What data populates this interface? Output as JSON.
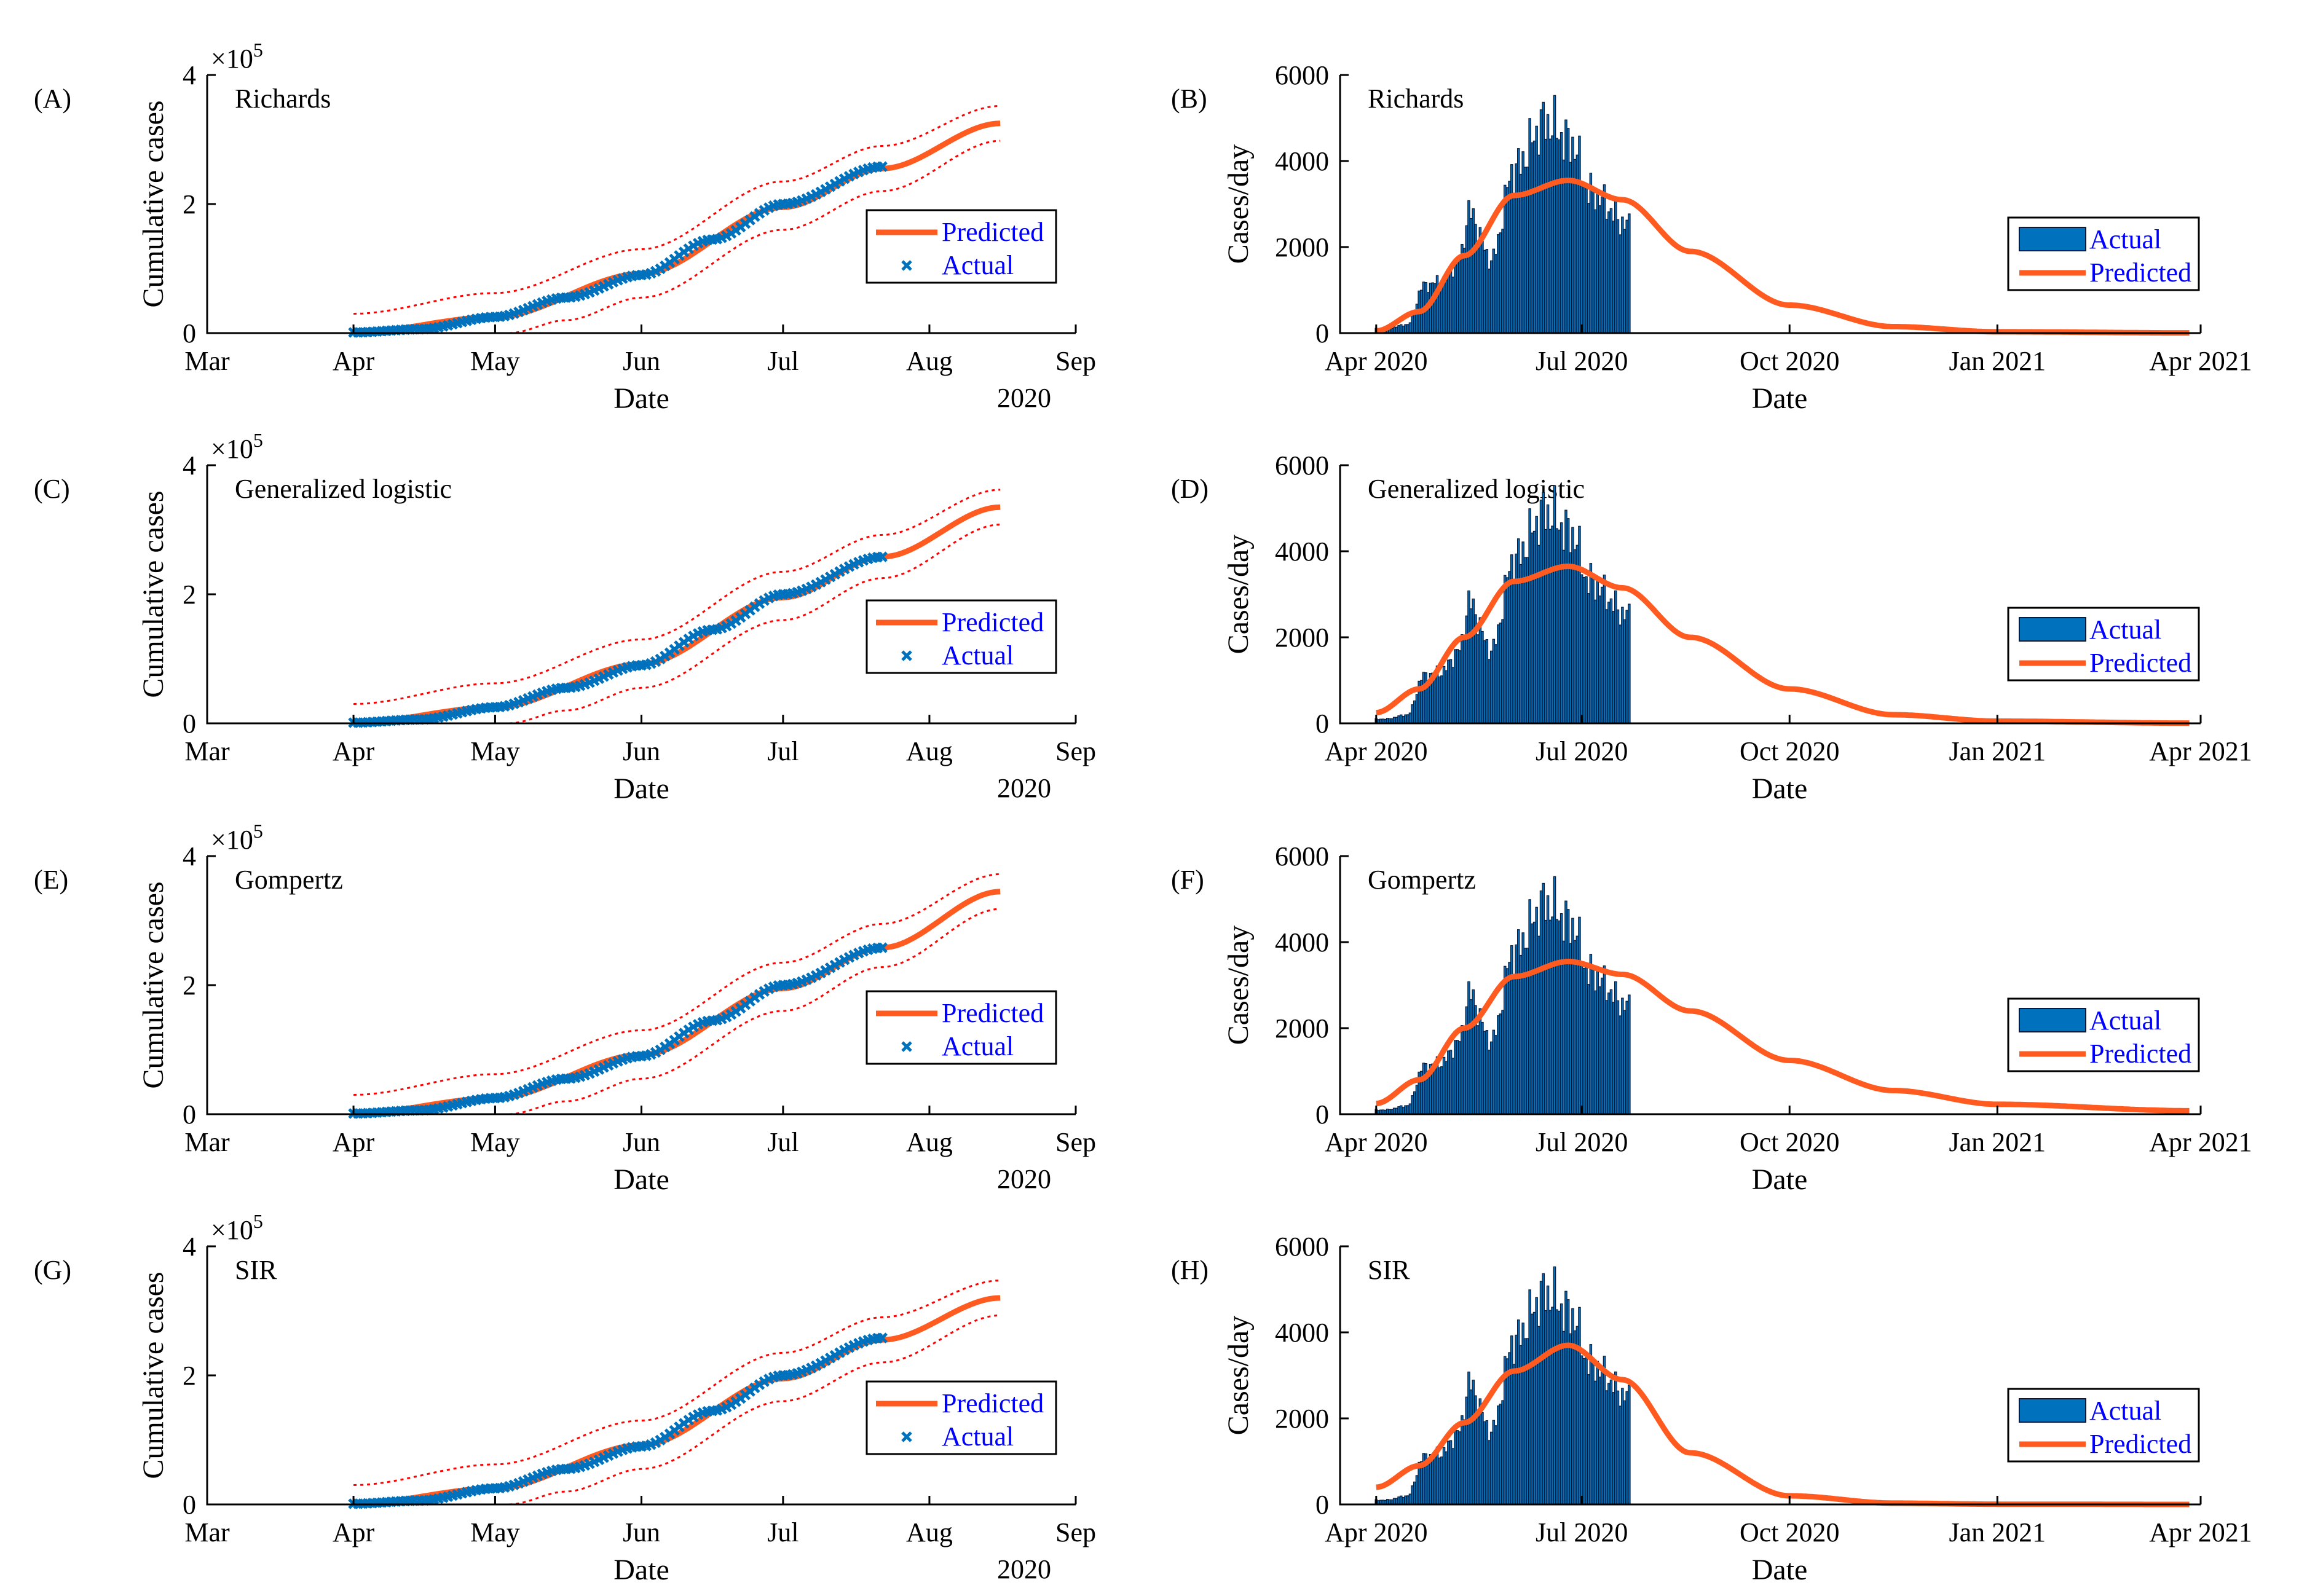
{
  "colors": {
    "actual": "#0072BD",
    "predicted": "#FF5A1F",
    "band": "#FF0000",
    "bar_edge": "#0B1A3A",
    "axis": "#000000",
    "legend_text": "#0000FF"
  },
  "shared": {
    "cum_ylabel": "Cumulative cases",
    "daily_ylabel": "Cases/day",
    "xlabel": "Date",
    "cum_multiplier_base": "×10",
    "cum_multiplier_exp": "5",
    "cum_year": "2020",
    "cum_xticks": [
      "Mar",
      "Apr",
      "May",
      "Jun",
      "Jul",
      "Aug",
      "Sep"
    ],
    "cum_yticks": [
      "0",
      "2",
      "4"
    ],
    "daily_xticks": [
      "Apr 2020",
      "Jul 2020",
      "Oct 2020",
      "Jan 2021",
      "Apr 2021"
    ],
    "daily_yticks": [
      "0",
      "2000",
      "4000",
      "6000"
    ],
    "legend_predicted": "Predicted",
    "legend_actual": "Actual"
  },
  "chart_data": [
    {
      "panel": "(A)",
      "title": "Richards",
      "type": "line",
      "x_unit": "days since 1 Mar 2020",
      "xlim": [
        0,
        184
      ],
      "ylim": [
        0,
        400000
      ],
      "actual_x_range": [
        31,
        143
      ],
      "predicted_x_range": [
        31,
        168
      ],
      "actual_points": [
        [
          31,
          1000
        ],
        [
          45,
          6000
        ],
        [
          61,
          25000
        ],
        [
          76,
          55000
        ],
        [
          92,
          90000
        ],
        [
          107,
          145000
        ],
        [
          122,
          200000
        ],
        [
          143,
          258000
        ]
      ],
      "predicted_points": [
        [
          31,
          1000
        ],
        [
          61,
          25000
        ],
        [
          92,
          92000
        ],
        [
          122,
          195000
        ],
        [
          143,
          255000
        ],
        [
          168,
          325000
        ]
      ],
      "band_upper": [
        [
          31,
          30000
        ],
        [
          61,
          62000
        ],
        [
          92,
          130000
        ],
        [
          122,
          235000
        ],
        [
          143,
          290000
        ],
        [
          168,
          352000
        ]
      ],
      "band_lower": [
        [
          64,
          0
        ],
        [
          76,
          20000
        ],
        [
          92,
          55000
        ],
        [
          122,
          160000
        ],
        [
          143,
          220000
        ],
        [
          168,
          298000
        ]
      ]
    },
    {
      "panel": "(B)",
      "title": "Richards",
      "type": "bar",
      "x_unit": "days since 1 Mar 2020",
      "xlim": [
        15,
        396
      ],
      "ylim": [
        0,
        6000
      ],
      "actual_x_range": [
        31,
        143
      ],
      "actual_key_values": [
        [
          35,
          100
        ],
        [
          45,
          200
        ],
        [
          52,
          1100
        ],
        [
          60,
          1200
        ],
        [
          68,
          1700
        ],
        [
          72,
          2800
        ],
        [
          82,
          1700
        ],
        [
          92,
          3800
        ],
        [
          106,
          4900
        ],
        [
          118,
          4400
        ],
        [
          125,
          3300
        ],
        [
          143,
          2500
        ]
      ],
      "predicted_x_range": [
        31,
        391
      ],
      "predicted_points": [
        [
          31,
          50
        ],
        [
          50,
          500
        ],
        [
          70,
          1800
        ],
        [
          92,
          3200
        ],
        [
          116,
          3550
        ],
        [
          140,
          3100
        ],
        [
          170,
          1900
        ],
        [
          214,
          650
        ],
        [
          260,
          150
        ],
        [
          306,
          30
        ],
        [
          391,
          5
        ]
      ]
    },
    {
      "panel": "(C)",
      "title": "Generalized logistic",
      "type": "line",
      "x_unit": "days since 1 Mar 2020",
      "xlim": [
        0,
        184
      ],
      "ylim": [
        0,
        400000
      ],
      "actual_x_range": [
        31,
        143
      ],
      "predicted_x_range": [
        31,
        168
      ],
      "actual_points": [
        [
          31,
          1000
        ],
        [
          45,
          6000
        ],
        [
          61,
          25000
        ],
        [
          76,
          55000
        ],
        [
          92,
          90000
        ],
        [
          107,
          145000
        ],
        [
          122,
          200000
        ],
        [
          143,
          258000
        ]
      ],
      "predicted_points": [
        [
          31,
          1000
        ],
        [
          61,
          25000
        ],
        [
          92,
          92000
        ],
        [
          122,
          195000
        ],
        [
          143,
          258000
        ],
        [
          168,
          335000
        ]
      ],
      "band_upper": [
        [
          31,
          30000
        ],
        [
          61,
          62000
        ],
        [
          92,
          130000
        ],
        [
          122,
          235000
        ],
        [
          143,
          292000
        ],
        [
          168,
          362000
        ]
      ],
      "band_lower": [
        [
          64,
          0
        ],
        [
          76,
          20000
        ],
        [
          92,
          55000
        ],
        [
          122,
          160000
        ],
        [
          143,
          225000
        ],
        [
          168,
          308000
        ]
      ]
    },
    {
      "panel": "(D)",
      "title": "Generalized logistic",
      "type": "bar",
      "x_unit": "days since 1 Mar 2020",
      "xlim": [
        15,
        396
      ],
      "ylim": [
        0,
        6000
      ],
      "actual_x_range": [
        31,
        143
      ],
      "actual_key_values": [
        [
          35,
          100
        ],
        [
          45,
          200
        ],
        [
          52,
          1100
        ],
        [
          60,
          1200
        ],
        [
          68,
          1700
        ],
        [
          72,
          2800
        ],
        [
          82,
          1700
        ],
        [
          92,
          3800
        ],
        [
          106,
          4900
        ],
        [
          118,
          4400
        ],
        [
          125,
          3300
        ],
        [
          143,
          2500
        ]
      ],
      "predicted_x_range": [
        31,
        391
      ],
      "predicted_points": [
        [
          31,
          250
        ],
        [
          50,
          800
        ],
        [
          70,
          2000
        ],
        [
          92,
          3300
        ],
        [
          116,
          3650
        ],
        [
          140,
          3150
        ],
        [
          170,
          2000
        ],
        [
          214,
          800
        ],
        [
          260,
          200
        ],
        [
          306,
          50
        ],
        [
          391,
          5
        ]
      ]
    },
    {
      "panel": "(E)",
      "title": "Gompertz",
      "type": "line",
      "x_unit": "days since 1 Mar 2020",
      "xlim": [
        0,
        184
      ],
      "ylim": [
        0,
        400000
      ],
      "actual_x_range": [
        31,
        143
      ],
      "predicted_x_range": [
        31,
        168
      ],
      "actual_points": [
        [
          31,
          1000
        ],
        [
          45,
          6000
        ],
        [
          61,
          25000
        ],
        [
          76,
          55000
        ],
        [
          92,
          90000
        ],
        [
          107,
          145000
        ],
        [
          122,
          200000
        ],
        [
          143,
          258000
        ]
      ],
      "predicted_points": [
        [
          31,
          1000
        ],
        [
          61,
          25000
        ],
        [
          92,
          92000
        ],
        [
          122,
          195000
        ],
        [
          143,
          258000
        ],
        [
          168,
          345000
        ]
      ],
      "band_upper": [
        [
          31,
          30000
        ],
        [
          61,
          62000
        ],
        [
          92,
          130000
        ],
        [
          122,
          235000
        ],
        [
          143,
          295000
        ],
        [
          168,
          372000
        ]
      ],
      "band_lower": [
        [
          64,
          0
        ],
        [
          76,
          20000
        ],
        [
          92,
          55000
        ],
        [
          122,
          160000
        ],
        [
          143,
          228000
        ],
        [
          168,
          318000
        ]
      ]
    },
    {
      "panel": "(F)",
      "title": "Gompertz",
      "type": "bar",
      "x_unit": "days since 1 Mar 2020",
      "xlim": [
        15,
        396
      ],
      "ylim": [
        0,
        6000
      ],
      "actual_x_range": [
        31,
        143
      ],
      "actual_key_values": [
        [
          35,
          100
        ],
        [
          45,
          200
        ],
        [
          52,
          1100
        ],
        [
          60,
          1200
        ],
        [
          68,
          1700
        ],
        [
          72,
          2800
        ],
        [
          82,
          1700
        ],
        [
          92,
          3800
        ],
        [
          106,
          4900
        ],
        [
          118,
          4400
        ],
        [
          125,
          3300
        ],
        [
          143,
          2500
        ]
      ],
      "predicted_x_range": [
        31,
        391
      ],
      "predicted_points": [
        [
          31,
          250
        ],
        [
          50,
          800
        ],
        [
          70,
          2000
        ],
        [
          92,
          3200
        ],
        [
          116,
          3550
        ],
        [
          140,
          3250
        ],
        [
          170,
          2400
        ],
        [
          214,
          1250
        ],
        [
          260,
          550
        ],
        [
          306,
          230
        ],
        [
          391,
          80
        ]
      ]
    },
    {
      "panel": "(G)",
      "title": "SIR",
      "type": "line",
      "x_unit": "days since 1 Mar 2020",
      "xlim": [
        0,
        184
      ],
      "ylim": [
        0,
        400000
      ],
      "actual_x_range": [
        31,
        143
      ],
      "predicted_x_range": [
        31,
        168
      ],
      "actual_points": [
        [
          31,
          1000
        ],
        [
          45,
          6000
        ],
        [
          61,
          25000
        ],
        [
          76,
          55000
        ],
        [
          92,
          90000
        ],
        [
          107,
          145000
        ],
        [
          122,
          200000
        ],
        [
          143,
          258000
        ]
      ],
      "predicted_points": [
        [
          31,
          1000
        ],
        [
          61,
          25000
        ],
        [
          92,
          92000
        ],
        [
          122,
          195000
        ],
        [
          143,
          255000
        ],
        [
          168,
          320000
        ]
      ],
      "band_upper": [
        [
          31,
          30000
        ],
        [
          61,
          62000
        ],
        [
          92,
          130000
        ],
        [
          122,
          235000
        ],
        [
          143,
          290000
        ],
        [
          168,
          347000
        ]
      ],
      "band_lower": [
        [
          64,
          0
        ],
        [
          76,
          20000
        ],
        [
          92,
          55000
        ],
        [
          122,
          160000
        ],
        [
          143,
          220000
        ],
        [
          168,
          293000
        ]
      ]
    },
    {
      "panel": "(H)",
      "title": "SIR",
      "type": "bar",
      "x_unit": "days since 1 Mar 2020",
      "xlim": [
        15,
        396
      ],
      "ylim": [
        0,
        6000
      ],
      "actual_x_range": [
        31,
        143
      ],
      "actual_key_values": [
        [
          35,
          100
        ],
        [
          45,
          200
        ],
        [
          52,
          1100
        ],
        [
          60,
          1200
        ],
        [
          68,
          1700
        ],
        [
          72,
          2800
        ],
        [
          82,
          1700
        ],
        [
          92,
          3800
        ],
        [
          106,
          4900
        ],
        [
          118,
          4400
        ],
        [
          125,
          3300
        ],
        [
          143,
          2500
        ]
      ],
      "predicted_x_range": [
        31,
        391
      ],
      "predicted_points": [
        [
          31,
          400
        ],
        [
          50,
          900
        ],
        [
          70,
          1900
        ],
        [
          92,
          3100
        ],
        [
          116,
          3700
        ],
        [
          140,
          2900
        ],
        [
          170,
          1200
        ],
        [
          214,
          200
        ],
        [
          260,
          30
        ],
        [
          306,
          5
        ],
        [
          391,
          0
        ]
      ]
    }
  ]
}
